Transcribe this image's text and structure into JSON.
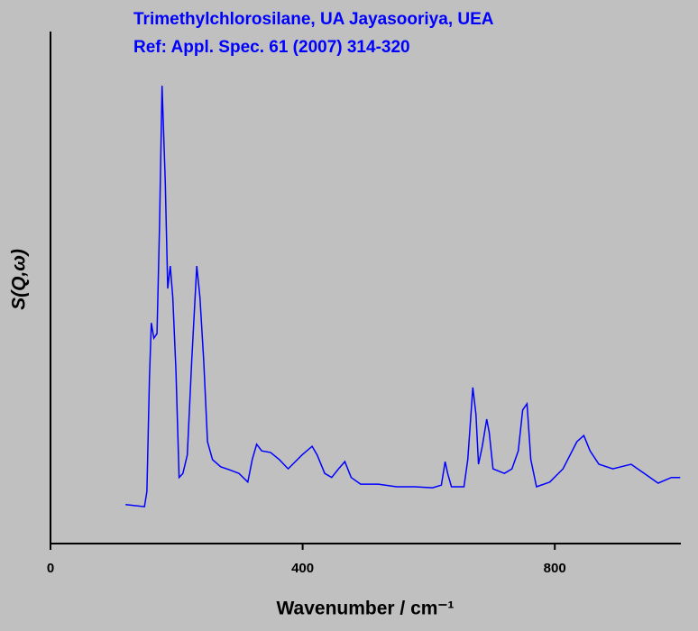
{
  "chart_data": {
    "type": "line",
    "title": "Trimethylchlorosilane, UA Jayasooriya, UEA",
    "subtitle": "Ref: Appl. Spec. 61 (2007) 314-320",
    "x_label": "Wavenumber / cm⁻¹",
    "y_label": "S(Q,ω)",
    "xlim": [
      0,
      1000
    ],
    "xticks": [
      0,
      400,
      800
    ],
    "ylim": [
      0,
      100
    ],
    "series": [
      {
        "color": "#0000ff",
        "x": [
          119,
          149,
          153,
          157,
          160,
          164,
          169,
          173,
          177,
          182,
          186,
          190,
          194,
          199,
          204,
          210,
          217,
          224,
          232,
          237,
          243,
          249,
          257,
          270,
          284,
          299,
          313,
          320,
          327,
          335,
          349,
          363,
          377,
          399,
          415,
          423,
          435,
          446,
          457,
          467,
          477,
          492,
          520,
          549,
          578,
          606,
          620,
          626,
          630,
          636,
          656,
          662,
          666,
          670,
          675,
          679,
          685,
          692,
          696,
          702,
          720,
          732,
          742,
          749,
          756,
          762,
          771,
          792,
          813,
          835,
          846,
          856,
          870,
          892,
          921,
          942,
          964,
          985,
          999
        ],
        "values": [
          7.6,
          7.2,
          10.2,
          32.2,
          43.1,
          40.1,
          41.0,
          62.1,
          89.4,
          71.0,
          49.8,
          54.2,
          48.1,
          33.8,
          12.9,
          13.7,
          17.3,
          35.7,
          54.2,
          48.1,
          35.7,
          19.9,
          16.4,
          15.0,
          14.4,
          13.7,
          12.0,
          16.4,
          19.4,
          18.1,
          17.8,
          16.4,
          14.6,
          17.3,
          19.0,
          17.3,
          13.7,
          12.9,
          14.6,
          16.0,
          12.9,
          11.6,
          11.6,
          11.1,
          11.1,
          10.9,
          11.4,
          16.0,
          13.7,
          11.1,
          11.1,
          16.4,
          23.4,
          30.5,
          25.2,
          15.5,
          19.0,
          24.3,
          21.7,
          14.6,
          13.7,
          14.6,
          18.1,
          26.1,
          27.3,
          16.4,
          11.1,
          12.0,
          14.6,
          19.9,
          21.1,
          18.1,
          15.5,
          14.6,
          15.5,
          13.7,
          11.8,
          12.9,
          12.9
        ]
      }
    ]
  }
}
